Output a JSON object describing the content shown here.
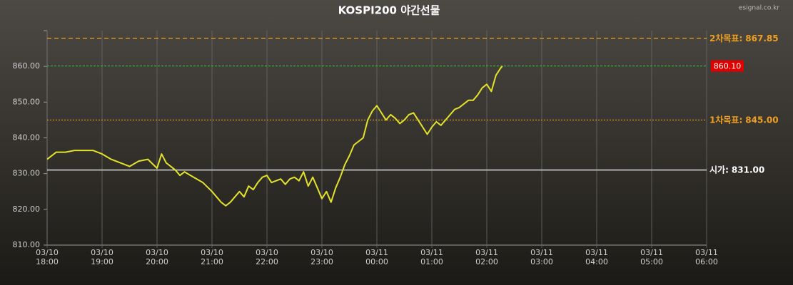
{
  "chart_data": {
    "type": "line",
    "title": "KOSPI200 야간선물",
    "watermark": "esignal.co.kr",
    "x": [
      "03/10 18:00",
      "03/10 18:10",
      "03/10 18:20",
      "03/10 18:30",
      "03/10 18:40",
      "03/10 18:50",
      "03/10 19:00",
      "03/10 19:10",
      "03/10 19:20",
      "03/10 19:30",
      "03/10 19:40",
      "03/10 19:50",
      "03/10 20:00",
      "03/10 20:05",
      "03/10 20:10",
      "03/10 20:15",
      "03/10 20:20",
      "03/10 20:25",
      "03/10 20:30",
      "03/10 20:40",
      "03/10 20:50",
      "03/10 21:00",
      "03/10 21:05",
      "03/10 21:10",
      "03/10 21:15",
      "03/10 21:20",
      "03/10 21:25",
      "03/10 21:30",
      "03/10 21:35",
      "03/10 21:40",
      "03/10 21:45",
      "03/10 21:50",
      "03/10 21:55",
      "03/10 22:00",
      "03/10 22:05",
      "03/10 22:10",
      "03/10 22:15",
      "03/10 22:20",
      "03/10 22:25",
      "03/10 22:30",
      "03/10 22:35",
      "03/10 22:40",
      "03/10 22:45",
      "03/10 22:50",
      "03/10 22:55",
      "03/10 23:00",
      "03/10 23:05",
      "03/10 23:10",
      "03/10 23:15",
      "03/10 23:20",
      "03/10 23:25",
      "03/10 23:30",
      "03/10 23:35",
      "03/10 23:40",
      "03/10 23:45",
      "03/10 23:50",
      "03/10 23:55",
      "03/11 00:00",
      "03/11 00:05",
      "03/11 00:10",
      "03/11 00:15",
      "03/11 00:20",
      "03/11 00:25",
      "03/11 00:30",
      "03/11 00:35",
      "03/11 00:40",
      "03/11 00:45",
      "03/11 00:50",
      "03/11 00:55",
      "03/11 01:00",
      "03/11 01:05",
      "03/11 01:10",
      "03/11 01:15",
      "03/11 01:20",
      "03/11 01:25",
      "03/11 01:30",
      "03/11 01:35",
      "03/11 01:40",
      "03/11 01:45",
      "03/11 01:50",
      "03/11 01:55",
      "03/11 02:00",
      "03/11 02:05",
      "03/11 02:10",
      "03/11 02:15",
      "03/11 02:17"
    ],
    "series": [
      {
        "color": "#e2e22a",
        "values": [
          834,
          836,
          836,
          836.5,
          836.5,
          836.5,
          835.5,
          834,
          833,
          832,
          833.5,
          834,
          831.5,
          835.5,
          833,
          832,
          831,
          829.5,
          830.5,
          829,
          827.5,
          825,
          823.5,
          822,
          821,
          822,
          823.5,
          825,
          823.5,
          826.5,
          825.5,
          827.5,
          829,
          829.5,
          827.5,
          828,
          828.5,
          827,
          828.5,
          829,
          828,
          830.5,
          826.5,
          829,
          826,
          823,
          825,
          822,
          826,
          829,
          832.5,
          835,
          838,
          839,
          840,
          845,
          847.5,
          849,
          847,
          845,
          846.5,
          845.5,
          844,
          845,
          846.5,
          847,
          845,
          843,
          841,
          843,
          844.5,
          843.5,
          845,
          846.5,
          848,
          848.5,
          849.5,
          850.5,
          850.5,
          852,
          854,
          855,
          853,
          857.5,
          859.5,
          860.1
        ]
      }
    ],
    "xlim": [
      "03/10 18:00",
      "03/11 06:00"
    ],
    "xticks": [
      "03/10 18:00",
      "03/10 19:00",
      "03/10 20:00",
      "03/10 21:00",
      "03/10 22:00",
      "03/10 23:00",
      "03/11 00:00",
      "03/11 01:00",
      "03/11 02:00",
      "03/11 03:00",
      "03/11 04:00",
      "03/11 05:00",
      "03/11 06:00"
    ],
    "ylim": [
      810,
      870
    ],
    "yticks": [
      {
        "value": 810,
        "label": "810.00"
      },
      {
        "value": 820,
        "label": "820.00"
      },
      {
        "value": 830,
        "label": "830.00"
      },
      {
        "value": 840,
        "label": "840.00"
      },
      {
        "value": 850,
        "label": "850.00"
      },
      {
        "value": 860,
        "label": "860.00"
      }
    ],
    "reference_lines": [
      {
        "name": "2차목표:",
        "value": 867.85,
        "label": "867.85",
        "color": "#f0a020",
        "style": "dashed"
      },
      {
        "name": "1차목표:",
        "value": 845,
        "label": "845.00",
        "color": "#f0a020",
        "style": "dotted"
      },
      {
        "name": "시가:",
        "value": 831,
        "label": "831.00",
        "color": "#ffffff",
        "style": "solid"
      }
    ],
    "current": {
      "value": 860.1,
      "label": "860.10",
      "color": "#33cc33",
      "box_color": "#e00000"
    }
  }
}
